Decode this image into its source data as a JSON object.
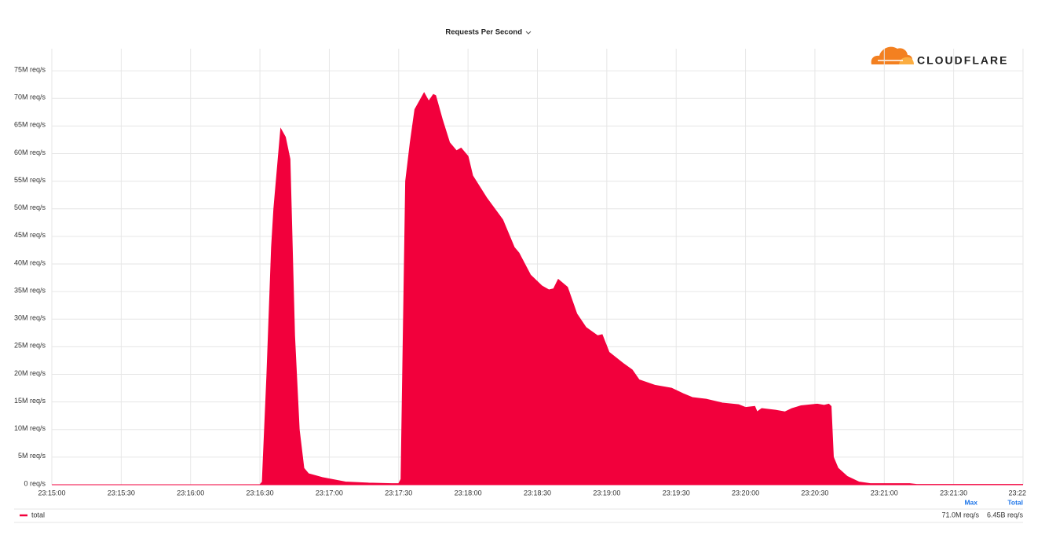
{
  "chart_data": {
    "type": "area",
    "title": "Requests Per Second",
    "logo": "CLOUDFLARE",
    "x": [
      "23:15:00",
      "23:16:30",
      "23:16:31",
      "23:16:33",
      "23:16:35",
      "23:16:36",
      "23:16:39",
      "23:16:41",
      "23:16:43",
      "23:16:45",
      "23:16:47",
      "23:16:49",
      "23:16:51",
      "23:16:57",
      "23:17:07",
      "23:17:17",
      "23:17:27",
      "23:17:30",
      "23:17:31",
      "23:17:33",
      "23:17:35",
      "23:17:37",
      "23:17:41",
      "23:17:43",
      "23:17:45",
      "23:17:46",
      "23:17:49",
      "23:17:52",
      "23:17:55",
      "23:17:57",
      "23:18:00",
      "23:18:02",
      "23:18:08",
      "23:18:15",
      "23:18:20",
      "23:18:22",
      "23:18:27",
      "23:18:32",
      "23:18:35",
      "23:18:37",
      "23:18:39",
      "23:18:43",
      "23:18:47",
      "23:18:51",
      "23:18:56",
      "23:18:58",
      "23:19:01",
      "23:19:07",
      "23:19:11",
      "23:19:14",
      "23:19:21",
      "23:19:28",
      "23:19:33",
      "23:19:37",
      "23:19:43",
      "23:19:50",
      "23:19:57",
      "23:20:00",
      "23:20:04",
      "23:20:05",
      "23:20:07",
      "23:20:13",
      "23:20:17",
      "23:20:20",
      "23:20:24",
      "23:20:31",
      "23:20:34",
      "23:20:36",
      "23:20:37",
      "23:20:38",
      "23:20:40",
      "23:20:44",
      "23:20:49",
      "23:20:54",
      "23:21:11",
      "23:21:14",
      "23:22:00"
    ],
    "series": [
      {
        "name": "total",
        "color": "#f2003c",
        "values": [
          0,
          0,
          500000,
          20000000,
          43000000,
          50000000,
          64500000,
          63000000,
          59000000,
          27000000,
          10000000,
          3000000,
          2000000,
          1300000,
          500000,
          300000,
          200000,
          200000,
          1000000,
          55000000,
          62000000,
          68000000,
          71000000,
          69500000,
          70700000,
          70500000,
          66000000,
          62000000,
          60500000,
          61000000,
          59500000,
          56000000,
          52000000,
          48000000,
          43000000,
          42000000,
          38000000,
          36000000,
          35300000,
          35500000,
          37200000,
          35800000,
          31000000,
          28500000,
          27000000,
          27200000,
          24000000,
          22000000,
          20800000,
          19000000,
          18000000,
          17500000,
          16500000,
          15800000,
          15500000,
          14800000,
          14500000,
          14000000,
          14200000,
          13200000,
          13800000,
          13500000,
          13200000,
          13800000,
          14300000,
          14600000,
          14400000,
          14600000,
          14200000,
          5000000,
          3000000,
          1500000,
          500000,
          200000,
          200000,
          50000,
          50000
        ]
      }
    ],
    "xlim": [
      "23:15:00",
      "23:22:00"
    ],
    "xticks": [
      "23:15:00",
      "23:15:30",
      "23:16:00",
      "23:16:30",
      "23:17:00",
      "23:17:30",
      "23:18:00",
      "23:18:30",
      "23:19:00",
      "23:19:30",
      "23:20:00",
      "23:20:30",
      "23:21:00",
      "23:21:30",
      "23:22"
    ],
    "ylim": [
      0,
      79000000
    ],
    "yticks": [
      {
        "value": 0,
        "label": "0 req/s"
      },
      {
        "value": 5000000,
        "label": "5M req/s"
      },
      {
        "value": 10000000,
        "label": "10M req/s"
      },
      {
        "value": 15000000,
        "label": "15M req/s"
      },
      {
        "value": 20000000,
        "label": "20M req/s"
      },
      {
        "value": 25000000,
        "label": "25M req/s"
      },
      {
        "value": 30000000,
        "label": "30M req/s"
      },
      {
        "value": 35000000,
        "label": "35M req/s"
      },
      {
        "value": 40000000,
        "label": "40M req/s"
      },
      {
        "value": 45000000,
        "label": "45M req/s"
      },
      {
        "value": 50000000,
        "label": "50M req/s"
      },
      {
        "value": 55000000,
        "label": "55M req/s"
      },
      {
        "value": 60000000,
        "label": "60M req/s"
      },
      {
        "value": 65000000,
        "label": "65M req/s"
      },
      {
        "value": 70000000,
        "label": "70M req/s"
      },
      {
        "value": 75000000,
        "label": "75M req/s"
      }
    ],
    "grid": true,
    "summary": [
      {
        "name": "Max",
        "text": "71.0M req/s"
      },
      {
        "name": "Total",
        "text": "6.45B req/s"
      }
    ]
  }
}
